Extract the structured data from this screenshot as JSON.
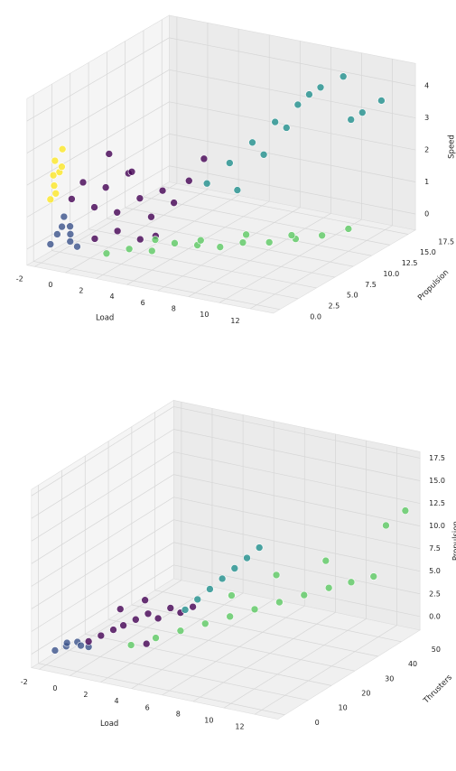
{
  "chart_data": [
    {
      "type": "scatter3d",
      "xlabel": "Load",
      "ylabel": "Propulsion",
      "zlabel": "Speed",
      "xlim": [
        -2.5,
        13.5
      ],
      "ylim": [
        -0.9,
        18.5
      ],
      "zlim": [
        -0.5,
        4.7
      ],
      "xticks": [
        -2,
        0,
        2,
        4,
        6,
        8,
        10,
        12
      ],
      "yticks": [
        {
          "value": 0,
          "label": "0.0"
        },
        2.5,
        {
          "value": 5,
          "label": "5.0"
        },
        7.5,
        {
          "value": 10,
          "label": "10.0"
        },
        12.5,
        {
          "value": 15,
          "label": "15.0"
        },
        17.5
      ],
      "zticks": [
        0,
        1,
        2,
        3,
        4
      ],
      "grid": true,
      "series": [
        {
          "color": "#fde725",
          "x": [
            -1.5,
            -1.4,
            -1.2,
            -1.3,
            -1.1,
            -1.5,
            -1.2,
            -1.0
          ],
          "y": [
            0.2,
            0.5,
            0.8,
            0.4,
            1.0,
            0.6,
            0.3,
            0.7
          ],
          "z": [
            1.5,
            1.9,
            2.3,
            2.7,
            3.0,
            2.2,
            1.7,
            2.5
          ]
        },
        {
          "color": "#3b528b",
          "x": [
            -1.5,
            -1.2,
            -0.8,
            -0.5,
            -1.0,
            -0.3,
            0.0,
            -0.7
          ],
          "y": [
            0.2,
            0.5,
            0.3,
            0.8,
            1.0,
            0.4,
            0.7,
            1.2
          ],
          "z": [
            0.1,
            0.4,
            0.7,
            0.2,
            0.9,
            0.5,
            0.1,
            0.6
          ]
        },
        {
          "color": "#440154",
          "x": [
            -0.5,
            0.0,
            0.5,
            1.0,
            1.5,
            2.0,
            2.5,
            3.0,
            3.5,
            4.0,
            4.5,
            5.0,
            1.0,
            2.0,
            3.0,
            0.5,
            1.5,
            4.0
          ],
          "y": [
            1.0,
            1.5,
            2.0,
            2.5,
            3.0,
            3.5,
            4.0,
            4.5,
            5.0,
            5.5,
            6.5,
            7.5,
            1.0,
            2.0,
            3.0,
            4.0,
            5.0,
            3.0
          ],
          "z": [
            1.5,
            2.0,
            1.2,
            1.8,
            1.0,
            2.2,
            1.4,
            0.8,
            1.6,
            1.2,
            1.8,
            2.4,
            0.4,
            0.6,
            0.3,
            2.6,
            2.0,
            0.5
          ]
        },
        {
          "color": "#5dc963",
          "x": [
            2.0,
            3.0,
            4.0,
            5.0,
            6.0,
            7.0,
            8.0,
            9.0,
            10.0,
            11.0,
            12.0,
            3.5,
            5.5,
            7.5,
            9.5
          ],
          "y": [
            0.5,
            1.5,
            2.5,
            3.5,
            4.5,
            5.5,
            6.5,
            8.0,
            9.5,
            11.0,
            12.5,
            4.0,
            6.0,
            8.0,
            10.0
          ],
          "z": [
            0.1,
            0.2,
            0.1,
            0.3,
            0.2,
            0.1,
            0.2,
            0.1,
            0.1,
            0.1,
            0.2,
            0.2,
            0.1,
            0.2,
            0.1
          ]
        },
        {
          "color": "#21908d",
          "x": [
            4.0,
            5.0,
            6.0,
            7.0,
            8.0,
            9.0,
            10.0,
            11.0,
            12.0,
            6.5,
            8.5,
            10.5,
            5.5,
            7.5
          ],
          "y": [
            10.0,
            11.0,
            12.0,
            13.0,
            14.0,
            15.0,
            16.0,
            16.5,
            17.0,
            12.5,
            14.5,
            16.0,
            11.0,
            13.5
          ],
          "z": [
            1.2,
            1.8,
            2.4,
            3.0,
            3.5,
            4.0,
            4.3,
            3.2,
            3.6,
            2.0,
            3.8,
            3.0,
            1.0,
            2.8
          ]
        }
      ]
    },
    {
      "type": "scatter3d",
      "xlabel": "Load",
      "ylabel": "Thrusters",
      "zlabel": "Propulsion",
      "xlim": [
        -2.5,
        13.5
      ],
      "ylim": [
        -3,
        58
      ],
      "zlim": [
        -1.5,
        18.2
      ],
      "xticks": [
        -2,
        0,
        2,
        4,
        6,
        8,
        10,
        12
      ],
      "yticks": [
        0,
        10,
        20,
        30,
        40,
        50
      ],
      "zticks": [
        {
          "value": 0,
          "label": "0.0"
        },
        2.5,
        {
          "value": 5,
          "label": "5.0"
        },
        7.5,
        {
          "value": 10,
          "label": "10.0"
        },
        12.5,
        {
          "value": 15,
          "label": "15.0"
        },
        17.5
      ],
      "grid": true,
      "series": [
        {
          "color": "#3b528b",
          "x": [
            -1.5,
            -1.0,
            -0.5,
            0.0,
            -0.8,
            -0.2
          ],
          "y": [
            0.5,
            2.0,
            3.5,
            5.0,
            1.0,
            3.0
          ],
          "z": [
            0.2,
            0.6,
            1.0,
            0.4,
            1.2,
            0.8
          ]
        },
        {
          "color": "#440154",
          "x": [
            0.0,
            0.5,
            1.0,
            1.5,
            2.0,
            2.5,
            3.0,
            3.5,
            4.0,
            4.5,
            1.0,
            2.0,
            3.0
          ],
          "y": [
            5.0,
            7.0,
            9.0,
            10.0,
            12.0,
            14.0,
            15.0,
            17.0,
            18.0,
            20.0,
            12.0,
            16.0,
            10.0
          ],
          "z": [
            1.0,
            1.5,
            2.0,
            2.5,
            3.0,
            3.5,
            3.0,
            4.0,
            3.5,
            4.0,
            3.8,
            4.5,
            1.0
          ]
        },
        {
          "color": "#21908d",
          "x": [
            4.0,
            4.5,
            5.0,
            5.5,
            6.0,
            6.5,
            7.0
          ],
          "y": [
            20.0,
            22.0,
            24.0,
            26.0,
            28.0,
            30.0,
            32.0
          ],
          "z": [
            3.5,
            4.5,
            5.5,
            6.5,
            7.5,
            8.5,
            9.5
          ]
        },
        {
          "color": "#5dc963",
          "x": [
            2.0,
            3.0,
            4.0,
            5.0,
            6.0,
            7.0,
            8.0,
            9.0,
            10.0,
            11.0,
            12.0,
            5.5,
            7.5,
            9.5,
            12.5,
            13.0
          ],
          "y": [
            10.0,
            14.0,
            18.0,
            22.0,
            26.0,
            30.0,
            34.0,
            38.0,
            42.0,
            45.0,
            48.0,
            30.0,
            36.0,
            44.0,
            50.0,
            55.0
          ],
          "z": [
            0.5,
            1.0,
            1.5,
            2.0,
            2.5,
            3.0,
            3.5,
            4.0,
            4.5,
            5.0,
            5.5,
            4.0,
            6.0,
            7.0,
            11.0,
            12.0
          ]
        }
      ]
    }
  ]
}
